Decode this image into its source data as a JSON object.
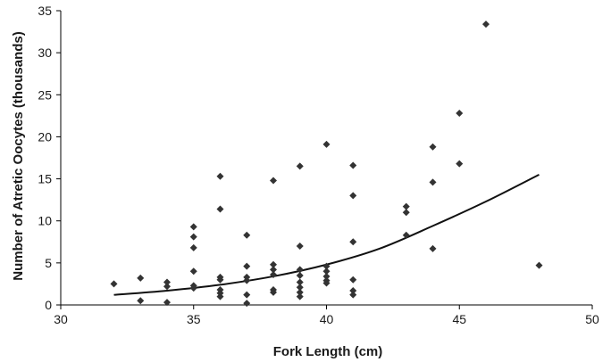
{
  "chart_data": {
    "type": "scatter",
    "title": "",
    "xlabel": "Fork Length (cm)",
    "ylabel": "Number of Atretic Oocytes (thousands)",
    "xlim": [
      30,
      50
    ],
    "ylim": [
      0,
      35
    ],
    "xticks": [
      "30",
      "35",
      "40",
      "45",
      "50"
    ],
    "yticks": [
      "0",
      "5",
      "10",
      "15",
      "20",
      "25",
      "30",
      "35"
    ],
    "grid": false,
    "legend": "none",
    "marker_color": "#333333",
    "series": [
      {
        "type": "scatter",
        "points": [
          {
            "x": 32,
            "y": 2.5
          },
          {
            "x": 33,
            "y": 3.2
          },
          {
            "x": 33,
            "y": 0.5
          },
          {
            "x": 34,
            "y": 2.7
          },
          {
            "x": 34,
            "y": 2.2
          },
          {
            "x": 34,
            "y": 0.3
          },
          {
            "x": 35,
            "y": 9.3
          },
          {
            "x": 35,
            "y": 8.1
          },
          {
            "x": 35,
            "y": 6.8
          },
          {
            "x": 35,
            "y": 4.0
          },
          {
            "x": 35,
            "y": 2.3
          },
          {
            "x": 35,
            "y": 2.0
          },
          {
            "x": 36,
            "y": 15.3
          },
          {
            "x": 36,
            "y": 11.4
          },
          {
            "x": 36,
            "y": 3.3
          },
          {
            "x": 36,
            "y": 3.0
          },
          {
            "x": 36,
            "y": 1.8
          },
          {
            "x": 36,
            "y": 1.4
          },
          {
            "x": 36,
            "y": 1.0
          },
          {
            "x": 37,
            "y": 8.3
          },
          {
            "x": 37,
            "y": 4.6
          },
          {
            "x": 37,
            "y": 3.3
          },
          {
            "x": 37,
            "y": 2.9
          },
          {
            "x": 37,
            "y": 1.2
          },
          {
            "x": 37,
            "y": 0.2
          },
          {
            "x": 38,
            "y": 14.8
          },
          {
            "x": 38,
            "y": 4.8
          },
          {
            "x": 38,
            "y": 4.2
          },
          {
            "x": 38,
            "y": 3.6
          },
          {
            "x": 38,
            "y": 1.8
          },
          {
            "x": 38,
            "y": 1.5
          },
          {
            "x": 39,
            "y": 16.5
          },
          {
            "x": 39,
            "y": 7.0
          },
          {
            "x": 39,
            "y": 4.2
          },
          {
            "x": 39,
            "y": 3.5
          },
          {
            "x": 39,
            "y": 2.7
          },
          {
            "x": 39,
            "y": 2.1
          },
          {
            "x": 39,
            "y": 1.5
          },
          {
            "x": 39,
            "y": 1.0
          },
          {
            "x": 40,
            "y": 19.1
          },
          {
            "x": 40,
            "y": 4.6
          },
          {
            "x": 40,
            "y": 4.0
          },
          {
            "x": 40,
            "y": 3.4
          },
          {
            "x": 40,
            "y": 2.9
          },
          {
            "x": 40,
            "y": 2.6
          },
          {
            "x": 41,
            "y": 16.6
          },
          {
            "x": 41,
            "y": 13.0
          },
          {
            "x": 41,
            "y": 7.5
          },
          {
            "x": 41,
            "y": 3.0
          },
          {
            "x": 41,
            "y": 1.7
          },
          {
            "x": 41,
            "y": 1.2
          },
          {
            "x": 43,
            "y": 11.7
          },
          {
            "x": 43,
            "y": 11.0
          },
          {
            "x": 43,
            "y": 8.3
          },
          {
            "x": 44,
            "y": 18.8
          },
          {
            "x": 44,
            "y": 14.6
          },
          {
            "x": 44,
            "y": 6.7
          },
          {
            "x": 45,
            "y": 22.8
          },
          {
            "x": 45,
            "y": 16.8
          },
          {
            "x": 46,
            "y": 33.4
          },
          {
            "x": 48,
            "y": 4.7
          }
        ]
      },
      {
        "type": "line",
        "points": [
          {
            "x": 32,
            "y": 1.2
          },
          {
            "x": 34,
            "y": 1.7
          },
          {
            "x": 36,
            "y": 2.4
          },
          {
            "x": 38,
            "y": 3.4
          },
          {
            "x": 40,
            "y": 4.8
          },
          {
            "x": 42,
            "y": 6.7
          },
          {
            "x": 44,
            "y": 9.4
          },
          {
            "x": 46,
            "y": 12.3
          },
          {
            "x": 48,
            "y": 15.5
          }
        ]
      }
    ]
  }
}
